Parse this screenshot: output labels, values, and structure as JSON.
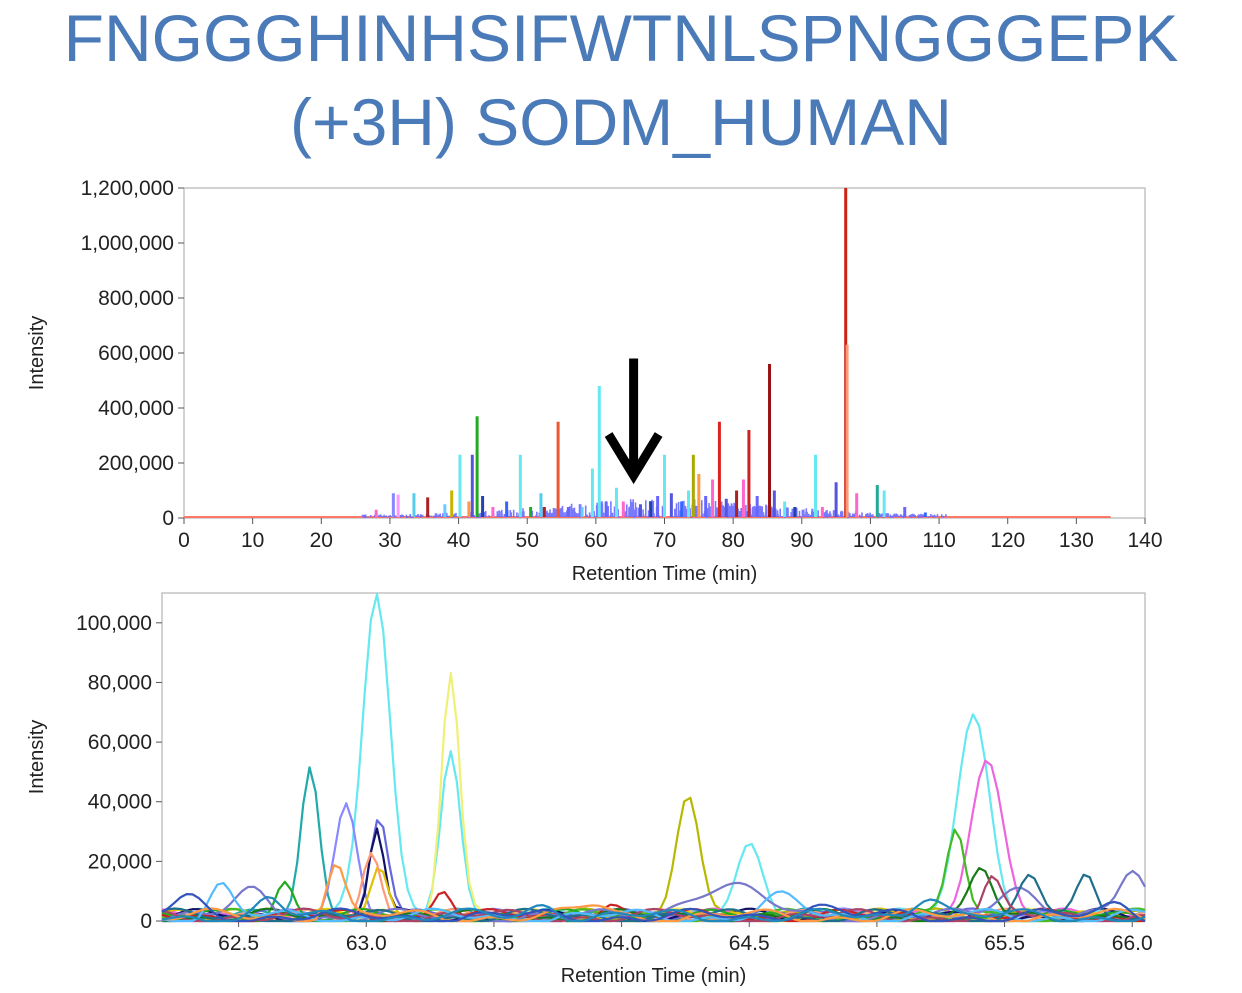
{
  "title": {
    "line1": "FNGGGHINHSIFWTNLSPNGGGEPK",
    "line2": "(+3H) SODM_HUMAN"
  },
  "chart_data": [
    {
      "type": "line",
      "xlabel": "Retention Time (min)",
      "ylabel": "Intensity",
      "xlim": [
        0,
        140
      ],
      "ylim": [
        0,
        1200000
      ],
      "x_ticks": [
        "0",
        "10",
        "20",
        "30",
        "40",
        "50",
        "60",
        "70",
        "80",
        "90",
        "100",
        "110",
        "120",
        "130",
        "140"
      ],
      "y_ticks": [
        "0",
        "200,000",
        "400,000",
        "600,000",
        "800,000",
        "1,000,000",
        "1,200,000"
      ],
      "grid": false,
      "baseline_range": [
        0,
        135
      ],
      "annotation": {
        "type": "arrow-down",
        "x": 65.5,
        "y_from": 580000,
        "y_to": 140000
      },
      "peaks": [
        {
          "x": 28.0,
          "y": 30000,
          "color": "#ff66cc"
        },
        {
          "x": 30.5,
          "y": 90000,
          "color": "#8888ff"
        },
        {
          "x": 31.2,
          "y": 85000,
          "color": "#ff99ff"
        },
        {
          "x": 33.5,
          "y": 90000,
          "color": "#55ccee"
        },
        {
          "x": 35.5,
          "y": 75000,
          "color": "#aa2222"
        },
        {
          "x": 38.0,
          "y": 50000,
          "color": "#66ccff"
        },
        {
          "x": 39.0,
          "y": 100000,
          "color": "#c8b400"
        },
        {
          "x": 40.2,
          "y": 230000,
          "color": "#66e8f0"
        },
        {
          "x": 41.5,
          "y": 60000,
          "color": "#ff9944"
        },
        {
          "x": 42.0,
          "y": 230000,
          "color": "#5555dd"
        },
        {
          "x": 42.7,
          "y": 370000,
          "color": "#22aa22"
        },
        {
          "x": 43.5,
          "y": 80000,
          "color": "#2244aa"
        },
        {
          "x": 45.0,
          "y": 40000,
          "color": "#ff66cc"
        },
        {
          "x": 47.0,
          "y": 60000,
          "color": "#3366ff"
        },
        {
          "x": 49.0,
          "y": 230000,
          "color": "#66e8f0"
        },
        {
          "x": 50.5,
          "y": 40000,
          "color": "#22aa22"
        },
        {
          "x": 52.0,
          "y": 90000,
          "color": "#55ccee"
        },
        {
          "x": 52.5,
          "y": 40000,
          "color": "#aa2222"
        },
        {
          "x": 54.5,
          "y": 350000,
          "color": "#ee5533"
        },
        {
          "x": 56.0,
          "y": 40000,
          "color": "#6666ff"
        },
        {
          "x": 58.0,
          "y": 40000,
          "color": "#66ccff"
        },
        {
          "x": 59.5,
          "y": 180000,
          "color": "#66e8f0"
        },
        {
          "x": 60.5,
          "y": 480000,
          "color": "#66e8f0"
        },
        {
          "x": 61.5,
          "y": 60000,
          "color": "#6666ff"
        },
        {
          "x": 63.0,
          "y": 110000,
          "color": "#66e8f0"
        },
        {
          "x": 64.0,
          "y": 60000,
          "color": "#ff66cc"
        },
        {
          "x": 66.5,
          "y": 50000,
          "color": "#5555dd"
        },
        {
          "x": 68.0,
          "y": 60000,
          "color": "#2244aa"
        },
        {
          "x": 69.0,
          "y": 80000,
          "color": "#6666ff"
        },
        {
          "x": 70.0,
          "y": 230000,
          "color": "#66e8f0"
        },
        {
          "x": 71.0,
          "y": 90000,
          "color": "#5555dd"
        },
        {
          "x": 72.5,
          "y": 60000,
          "color": "#3366ff"
        },
        {
          "x": 73.5,
          "y": 100000,
          "color": "#66e8f0"
        },
        {
          "x": 74.2,
          "y": 230000,
          "color": "#aaaa00"
        },
        {
          "x": 75.0,
          "y": 160000,
          "color": "#ff9944"
        },
        {
          "x": 76.0,
          "y": 80000,
          "color": "#6666ff"
        },
        {
          "x": 77.0,
          "y": 140000,
          "color": "#ff66cc"
        },
        {
          "x": 78.0,
          "y": 350000,
          "color": "#dd2222"
        },
        {
          "x": 79.0,
          "y": 70000,
          "color": "#5555dd"
        },
        {
          "x": 80.5,
          "y": 100000,
          "color": "#aa2222"
        },
        {
          "x": 81.5,
          "y": 140000,
          "color": "#ff66cc"
        },
        {
          "x": 82.3,
          "y": 320000,
          "color": "#cc2222"
        },
        {
          "x": 83.5,
          "y": 80000,
          "color": "#6666ff"
        },
        {
          "x": 85.3,
          "y": 560000,
          "color": "#991111"
        },
        {
          "x": 86.0,
          "y": 100000,
          "color": "#5555dd"
        },
        {
          "x": 87.5,
          "y": 60000,
          "color": "#66e8f0"
        },
        {
          "x": 89.0,
          "y": 40000,
          "color": "#2244aa"
        },
        {
          "x": 92.0,
          "y": 230000,
          "color": "#66e8f0"
        },
        {
          "x": 93.0,
          "y": 40000,
          "color": "#ff66cc"
        },
        {
          "x": 95.0,
          "y": 130000,
          "color": "#5555dd"
        },
        {
          "x": 96.4,
          "y": 1200000,
          "color": "#cc2211"
        },
        {
          "x": 96.6,
          "y": 630000,
          "color": "#ff9977"
        },
        {
          "x": 98.0,
          "y": 90000,
          "color": "#ff66cc"
        },
        {
          "x": 101.0,
          "y": 120000,
          "color": "#22aa99"
        },
        {
          "x": 102.0,
          "y": 100000,
          "color": "#66e8f0"
        },
        {
          "x": 105.0,
          "y": 40000,
          "color": "#6666ff"
        },
        {
          "x": 108.0,
          "y": 20000,
          "color": "#3366ff"
        }
      ]
    },
    {
      "type": "line",
      "xlabel": "Retention Time (min)",
      "ylabel": "Intensity",
      "xlim": [
        62.2,
        66.05
      ],
      "ylim": [
        0,
        110000
      ],
      "x_ticks": [
        "62.5",
        "63.0",
        "63.5",
        "64.0",
        "64.5",
        "65.0",
        "65.5",
        "66.0"
      ],
      "y_ticks": [
        "0",
        "20,000",
        "40,000",
        "60,000",
        "80,000",
        "100,000"
      ],
      "grid": false,
      "series": [
        {
          "color": "#66e8f0",
          "peaks": [
            [
              63.04,
              108000,
              0.075
            ],
            [
              63.33,
              58000,
              0.055
            ],
            [
              64.5,
              23000,
              0.07
            ],
            [
              65.38,
              68000,
              0.09
            ]
          ]
        },
        {
          "color": "#f0f077",
          "peaks": [
            [
              63.33,
              82000,
              0.05
            ]
          ]
        },
        {
          "color": "#22aaaa",
          "peaks": [
            [
              62.78,
              49000,
              0.05
            ]
          ]
        },
        {
          "color": "#b8b800",
          "peaks": [
            [
              64.26,
              43000,
              0.065
            ]
          ]
        },
        {
          "color": "#ee66dd",
          "peaks": [
            [
              65.43,
              53000,
              0.09
            ]
          ]
        },
        {
          "color": "#8888ff",
          "peaks": [
            [
              62.92,
              37000,
              0.06
            ]
          ]
        },
        {
          "color": "#6666dd",
          "peaks": [
            [
              63.05,
              35000,
              0.05
            ]
          ]
        },
        {
          "color": "#111166",
          "peaks": [
            [
              63.04,
              29000,
              0.04
            ]
          ]
        },
        {
          "color": "#e0c000",
          "peaks": [
            [
              63.05,
              16000,
              0.045
            ]
          ]
        },
        {
          "color": "#ff9977",
          "peaks": [
            [
              63.02,
              22000,
              0.05
            ]
          ]
        },
        {
          "color": "#44bb22",
          "peaks": [
            [
              65.31,
              29000,
              0.05
            ]
          ]
        },
        {
          "color": "#22aa22",
          "peaks": [
            [
              62.68,
              12000,
              0.05
            ]
          ]
        },
        {
          "color": "#cc2222",
          "peaks": [
            [
              63.3,
              10000,
              0.05
            ],
            [
              63.95,
              5000,
              0.06
            ]
          ]
        },
        {
          "color": "#1a7a1a",
          "peaks": [
            [
              65.41,
              15000,
              0.06
            ]
          ]
        },
        {
          "color": "#7777cc",
          "peaks": [
            [
              62.55,
              8000,
              0.09
            ],
            [
              64.4,
              10000,
              0.2
            ],
            [
              65.55,
              10000,
              0.12
            ],
            [
              66.0,
              15000,
              0.07
            ]
          ]
        },
        {
          "color": "#1e6e8c",
          "peaks": [
            [
              65.6,
              14000,
              0.06
            ],
            [
              65.82,
              12000,
              0.05
            ]
          ]
        },
        {
          "color": "#aa4466",
          "peaks": [
            [
              65.45,
              12000,
              0.05
            ]
          ]
        },
        {
          "color": "#55bbff",
          "peaks": [
            [
              62.43,
              10000,
              0.06
            ],
            [
              64.62,
              6000,
              0.1
            ]
          ]
        },
        {
          "color": "#ff9944",
          "peaks": [
            [
              62.88,
              18000,
              0.05
            ],
            [
              63.9,
              4000,
              0.08
            ]
          ]
        },
        {
          "color": "#3355bb",
          "peaks": [
            [
              62.3,
              6000,
              0.08
            ],
            [
              64.75,
              4000,
              0.1
            ],
            [
              65.95,
              5000,
              0.08
            ]
          ]
        },
        {
          "color": "#2288bb",
          "peaks": [
            [
              62.62,
              5000,
              0.06
            ],
            [
              63.7,
              4000,
              0.08
            ],
            [
              65.2,
              8000,
              0.08
            ]
          ]
        }
      ]
    }
  ]
}
